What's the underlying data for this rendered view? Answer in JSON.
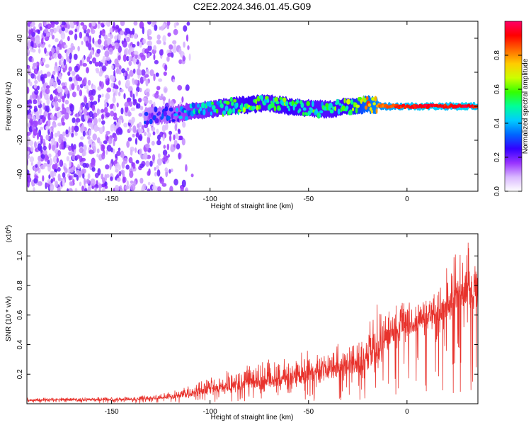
{
  "title": "C2E2.2024.346.01.45.G09",
  "chart_data": [
    {
      "type": "heatmap",
      "xlabel": "Height of straight line (km)",
      "ylabel": "Frequency (Hz)",
      "xlim": [
        -193,
        36
      ],
      "ylim": [
        -50,
        50
      ],
      "xticks": [
        -150,
        -100,
        -50,
        0
      ],
      "yticks": [
        -40,
        -20,
        0,
        20,
        40
      ],
      "colorbar": {
        "label": "Normalized spectral amplitude",
        "range": [
          0,
          1
        ],
        "ticks": [
          "0.0",
          "0.2",
          "0.4",
          "0.6",
          "0.8"
        ],
        "colormap": [
          "#ffffff",
          "#d9b8ff",
          "#9933ff",
          "#3300ff",
          "#0066ff",
          "#00ccff",
          "#00ff99",
          "#33ff00",
          "#ccff00",
          "#ffcc00",
          "#ff6600",
          "#ff0000",
          "#ff0066"
        ]
      },
      "ridge": {
        "description_of_content": "noise scatter for x < -130, signal ridge near 0 Hz from x = -130 to x = 36",
        "x": [
          -133,
          -120,
          -110,
          -100,
          -90,
          -80,
          -70,
          -60,
          -50,
          -40,
          -30,
          -20,
          -10,
          0,
          10,
          20,
          30,
          36
        ],
        "y": [
          -6,
          -5,
          -3,
          -2,
          0,
          1,
          2,
          0,
          -1,
          -2,
          0,
          1,
          0,
          0,
          0,
          0,
          0,
          0
        ],
        "amplitude": [
          0.25,
          0.3,
          0.4,
          0.45,
          0.5,
          0.55,
          0.5,
          0.55,
          0.5,
          0.5,
          0.55,
          0.75,
          0.85,
          0.9,
          0.95,
          0.9,
          0.95,
          0.9
        ]
      }
    },
    {
      "type": "line",
      "xlabel": "Height of straight line (km)",
      "ylabel": "SNR (10 * v/v)",
      "y_multiplier": "(x10^4)",
      "xlim": [
        -193,
        36
      ],
      "ylim": [
        0,
        11500
      ],
      "xticks": [
        -150,
        -100,
        -50,
        0
      ],
      "yticks": [
        0.2,
        0.4,
        0.6,
        0.8,
        1.0
      ],
      "series": [
        {
          "color": "#e8322c",
          "x": [
            -193,
            -180,
            -160,
            -140,
            -130,
            -120,
            -110,
            -100,
            -90,
            -80,
            -70,
            -60,
            -50,
            -40,
            -30,
            -20,
            -15,
            -10,
            -5,
            0,
            5,
            10,
            15,
            20,
            25,
            30,
            36
          ],
          "y": [
            220,
            250,
            260,
            280,
            330,
            450,
            650,
            900,
            1150,
            1350,
            1500,
            1650,
            1850,
            2100,
            2400,
            2800,
            3600,
            4300,
            5000,
            5200,
            5300,
            5600,
            6000,
            6600,
            7100,
            7400,
            6900
          ],
          "peak_y": [
            400,
            420,
            450,
            500,
            600,
            800,
            1300,
            1900,
            2300,
            2800,
            3000,
            3400,
            3700,
            3900,
            4400,
            5200,
            6900,
            7300,
            7400,
            7100,
            7400,
            7800,
            8300,
            9500,
            10200,
            11300,
            10000
          ]
        }
      ]
    }
  ]
}
